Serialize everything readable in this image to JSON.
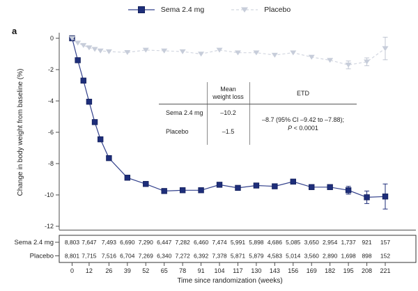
{
  "panel_label": "a",
  "colors": {
    "sema_marker": "#1e2e7a",
    "sema_marker_stroke": "#13205c",
    "sema_line": "#33418c",
    "placebo_marker": "#c7cdda",
    "placebo_line": "#d2d6e0",
    "placebo_error": "#c0c6d3",
    "axis": "#4d4d4d",
    "text": "#1f1f1f",
    "box_border": "#333333"
  },
  "legend": {
    "sema_label": "Sema 2.4 mg",
    "placebo_label": "Placebo"
  },
  "chart_data": {
    "type": "line",
    "title": "",
    "xlabel": "Time since randomization (weeks)",
    "ylabel": "Change in body weight from baseline (%)",
    "xlim": [
      0,
      221
    ],
    "ylim": [
      -12.4,
      0.5
    ],
    "grid": false,
    "legend_position": "top-center",
    "x": [
      0,
      4,
      8,
      12,
      16,
      20,
      26,
      39,
      52,
      65,
      78,
      91,
      104,
      117,
      130,
      143,
      156,
      169,
      182,
      195,
      208,
      221
    ],
    "series": [
      {
        "name": "Sema 2.4 mg",
        "marker": "square",
        "line_style": "solid",
        "values": [
          0,
          -1.4,
          -2.7,
          -4.05,
          -5.35,
          -6.45,
          -7.65,
          -8.9,
          -9.3,
          -9.75,
          -9.7,
          -9.7,
          -9.35,
          -9.55,
          -9.4,
          -9.45,
          -9.15,
          -9.5,
          -9.5,
          -9.7,
          -10.15,
          -10.1
        ],
        "errors": [
          null,
          null,
          null,
          null,
          null,
          null,
          null,
          null,
          null,
          null,
          null,
          null,
          null,
          null,
          null,
          null,
          null,
          null,
          null,
          0.25,
          0.4,
          0.8
        ]
      },
      {
        "name": "Placebo",
        "marker": "triangle-down",
        "line_style": "dashed",
        "values": [
          0,
          -0.3,
          -0.45,
          -0.6,
          -0.7,
          -0.8,
          -0.85,
          -0.9,
          -0.75,
          -0.8,
          -0.85,
          -1.0,
          -0.75,
          -0.92,
          -0.92,
          -1.07,
          -0.92,
          -1.2,
          -1.4,
          -1.7,
          -1.5,
          -0.65
        ],
        "errors": [
          null,
          null,
          null,
          null,
          null,
          null,
          null,
          null,
          null,
          null,
          null,
          null,
          null,
          null,
          null,
          null,
          null,
          null,
          null,
          0.25,
          0.25,
          0.72
        ]
      }
    ],
    "yticks": [
      0,
      -2,
      -4,
      -6,
      -8,
      -10,
      -12
    ],
    "ytick_labels": [
      "0",
      "-2",
      "-4",
      "-6",
      "-8",
      "-10",
      "-12"
    ],
    "xticks": [
      0,
      12,
      26,
      39,
      52,
      65,
      78,
      91,
      104,
      117,
      130,
      143,
      156,
      169,
      182,
      195,
      208,
      221
    ],
    "xtick_labels": [
      "0",
      "12",
      "26",
      "39",
      "52",
      "65",
      "78",
      "91",
      "104",
      "117",
      "130",
      "143",
      "156",
      "169",
      "182",
      "195",
      "208",
      "221"
    ]
  },
  "inset_table": {
    "header_mean_line1": "Mean",
    "header_mean_line2": "weight loss",
    "header_etd": "ETD",
    "row1_label": "Sema 2.4 mg",
    "row1_value": "–10.2",
    "row2_label": "Placebo",
    "row2_value": "–1.5",
    "etd_line1": "–8.7 (95% CI –9.42 to –7.88);",
    "etd_p": "P",
    "etd_p_rest": " < 0.0001"
  },
  "risk_table": {
    "rows": [
      {
        "label": "Sema 2.4 mg",
        "values": [
          "8,803",
          "7,647",
          "7,493",
          "6,690",
          "7,290",
          "6,447",
          "7,282",
          "6,460",
          "7,474",
          "5,991",
          "5,898",
          "4,686",
          "5,085",
          "3,650",
          "2,954",
          "1,737",
          "921",
          "157"
        ]
      },
      {
        "label": "Placebo",
        "values": [
          "8,801",
          "7,715",
          "7,516",
          "6,704",
          "7,269",
          "6,340",
          "7,272",
          "6,392",
          "7,378",
          "5,871",
          "5,879",
          "4,583",
          "5,014",
          "3,560",
          "2,890",
          "1,698",
          "898",
          "152"
        ]
      }
    ]
  }
}
